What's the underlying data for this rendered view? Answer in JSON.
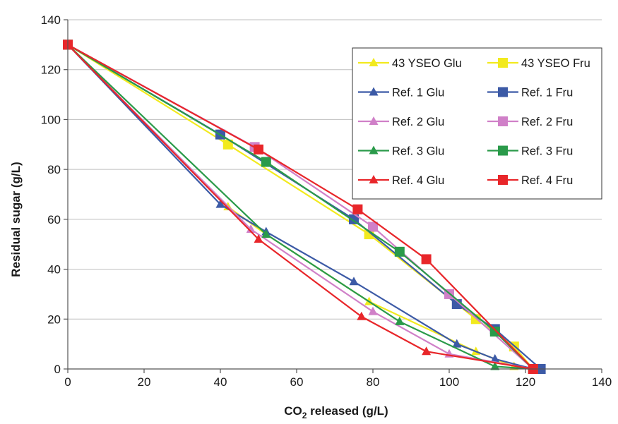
{
  "chart_data": {
    "type": "line",
    "title": "",
    "xlabel": "CO",
    "xlabel_sub": "2",
    "xlabel_rest": " released (g/L)",
    "ylabel": "Residual sugar (g/L)",
    "xlim": [
      0,
      140
    ],
    "ylim": [
      0,
      140
    ],
    "xticks": [
      0,
      20,
      40,
      60,
      80,
      100,
      120,
      140
    ],
    "yticks": [
      0,
      20,
      40,
      60,
      80,
      100,
      120,
      140
    ],
    "grid": "horizontal",
    "legend_position": "top-right",
    "series": [
      {
        "name": "43 YSEO Glu",
        "color": "#f2ea1e",
        "marker": "triangle",
        "x": [
          0,
          42,
          52,
          79,
          107,
          117,
          122
        ],
        "y": [
          130,
          65,
          54,
          27,
          7,
          1,
          0
        ]
      },
      {
        "name": "43 YSEO Fru",
        "color": "#f2ea1e",
        "marker": "square",
        "x": [
          0,
          42,
          79,
          107,
          117,
          122
        ],
        "y": [
          130,
          90,
          54,
          20,
          9,
          0
        ]
      },
      {
        "name": "Ref. 1 Glu",
        "color": "#3c5aa6",
        "marker": "triangle",
        "x": [
          0,
          40,
          52,
          75,
          102,
          112,
          122
        ],
        "y": [
          130,
          66,
          55,
          35,
          10,
          4,
          0
        ]
      },
      {
        "name": "Ref. 1 Fru",
        "color": "#3c5aa6",
        "marker": "square",
        "x": [
          0,
          40,
          75,
          102,
          112,
          124
        ],
        "y": [
          130,
          94,
          60,
          26,
          16,
          0
        ]
      },
      {
        "name": "Ref. 2 Glu",
        "color": "#d080c8",
        "marker": "triangle",
        "x": [
          0,
          48,
          80,
          100,
          122
        ],
        "y": [
          130,
          56,
          23,
          6,
          0
        ]
      },
      {
        "name": "Ref. 2 Fru",
        "color": "#d080c8",
        "marker": "square",
        "x": [
          0,
          49,
          80,
          100,
          122
        ],
        "y": [
          130,
          89,
          57,
          30,
          0
        ]
      },
      {
        "name": "Ref. 3 Glu",
        "color": "#2a9a4a",
        "marker": "triangle",
        "x": [
          0,
          52,
          87,
          112,
          122
        ],
        "y": [
          130,
          54,
          19,
          1,
          0
        ]
      },
      {
        "name": "Ref. 3 Fru",
        "color": "#2a9a4a",
        "marker": "square",
        "x": [
          0,
          52,
          87,
          112,
          122
        ],
        "y": [
          130,
          83,
          47,
          15,
          0
        ]
      },
      {
        "name": "Ref. 4 Glu",
        "color": "#e8262a",
        "marker": "triangle",
        "x": [
          0,
          50,
          77,
          94,
          122
        ],
        "y": [
          130,
          52,
          21,
          7,
          0
        ]
      },
      {
        "name": "Ref. 4 Fru",
        "color": "#e8262a",
        "marker": "square",
        "x": [
          0,
          50,
          76,
          94,
          122
        ],
        "y": [
          130,
          88,
          64,
          44,
          0
        ]
      }
    ]
  }
}
